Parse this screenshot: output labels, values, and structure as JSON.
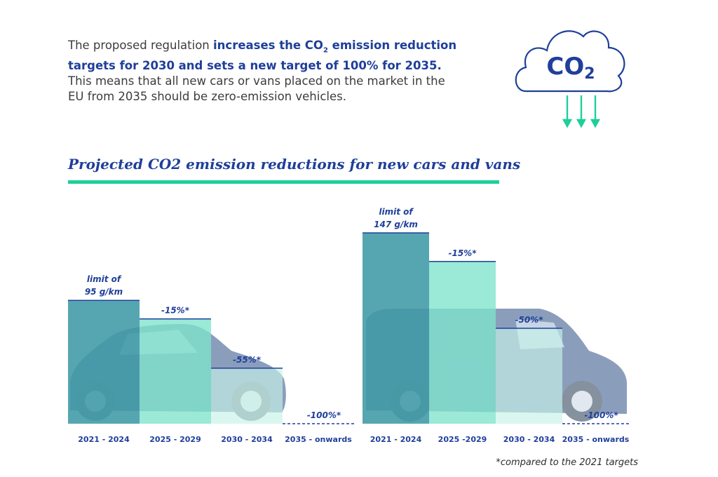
{
  "intro": {
    "part1": "The proposed regulation ",
    "highlight_a": "increases the CO",
    "highlight_sub": "2",
    "highlight_b": " emission reduction targets for 2030 and sets a new target of 100% for 2035.",
    "part2": " This means that all new cars or vans placed on the market in the EU from 2035 should be zero-emission vehicles."
  },
  "cloud": {
    "text": "CO",
    "sub": "2"
  },
  "colors": {
    "accent_blue": "#1f3f9a",
    "teal_dark": "#3f9aa6",
    "mint": "#7fe3cc",
    "mint_light": "#c6f2e6",
    "green_line": "#1fcf9a"
  },
  "chart_data": [
    {
      "type": "bar",
      "vehicle": "car",
      "categories": [
        "2021 - 2024",
        "2025 - 2029",
        "2030 - 2034",
        "2035 - onwards"
      ],
      "values": [
        95,
        80.75,
        42.75,
        0
      ],
      "annotations": [
        "limit of\n95 g/km",
        "-15%*",
        "-55%*",
        "-100%*"
      ],
      "title": "Projected CO2 emission reductions for new cars and vans",
      "xlabel": "",
      "ylabel": "",
      "ylim": [
        0,
        147
      ],
      "grid": false
    },
    {
      "type": "bar",
      "vehicle": "van",
      "categories": [
        "2021 - 2024",
        "2025 -2029",
        "2030 - 2034",
        "2035 - onwards"
      ],
      "values": [
        147,
        124.95,
        73.5,
        0
      ],
      "annotations": [
        "limit of\n147 g/km",
        "-15%*",
        "-50%*",
        "-100%*"
      ],
      "xlabel": "",
      "ylabel": "",
      "ylim": [
        0,
        147
      ],
      "grid": false
    }
  ],
  "footnote": "*compared to the 2021 targets"
}
